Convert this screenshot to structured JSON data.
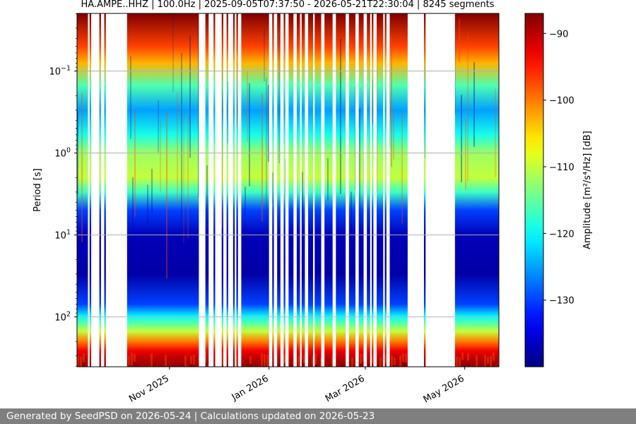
{
  "chart_data": {
    "type": "heatmap",
    "title": "HA.AMPE..HHZ | 100.0Hz | 2025-09-05T07:37:50 - 2026-05-21T22:30:04 | 8245 segments",
    "ylabel": "Period [s]",
    "xlabel": "",
    "y_scale": "log",
    "y_range_s": [
      0.0198,
      407
    ],
    "x_range": [
      "2025-09-05",
      "2026-05-21"
    ],
    "x_ticks": [
      {
        "date": "2025-11-01",
        "label": "Nov 2025"
      },
      {
        "date": "2026-01-01",
        "label": "Jan 2026"
      },
      {
        "date": "2026-03-01",
        "label": "Mar 2026"
      },
      {
        "date": "2026-05-01",
        "label": "May 2026"
      }
    ],
    "y_ticks": [
      {
        "value": 0.1,
        "base": "10",
        "exp": "−1"
      },
      {
        "value": 1,
        "base": "10",
        "exp": "0"
      },
      {
        "value": 10,
        "base": "10",
        "exp": "1"
      },
      {
        "value": 100,
        "base": "10",
        "exp": "2"
      }
    ],
    "colorbar": {
      "label": "Amplitude [m²/s⁴/Hz] [dB]",
      "colormap": "jet",
      "range_db": [
        -140,
        -87
      ],
      "ticks": [
        -90,
        -100,
        -110,
        -120,
        -130
      ]
    },
    "data_gaps": [
      [
        "2025-09-12",
        "2025-09-13"
      ],
      [
        "2025-09-14",
        "2025-09-19"
      ],
      [
        "2025-09-20",
        "2025-09-22"
      ],
      [
        "2025-09-23",
        "2025-10-06"
      ],
      [
        "2025-11-19",
        "2025-11-23"
      ],
      [
        "2025-11-25",
        "2025-11-28"
      ],
      [
        "2025-11-29",
        "2025-12-03"
      ],
      [
        "2025-12-04",
        "2025-12-06"
      ],
      [
        "2025-12-07",
        "2025-12-10"
      ],
      [
        "2025-12-11",
        "2025-12-12"
      ],
      [
        "2025-12-13",
        "2025-12-15"
      ],
      [
        "2026-01-01",
        "2026-01-03"
      ],
      [
        "2026-01-04",
        "2026-01-06"
      ],
      [
        "2026-01-08",
        "2026-01-10"
      ],
      [
        "2026-01-11",
        "2026-01-13"
      ],
      [
        "2026-01-16",
        "2026-01-18"
      ],
      [
        "2026-01-20",
        "2026-01-21"
      ],
      [
        "2026-01-23",
        "2026-01-25"
      ],
      [
        "2026-01-28",
        "2026-01-29"
      ],
      [
        "2026-02-02",
        "2026-02-04"
      ],
      [
        "2026-02-09",
        "2026-02-11"
      ],
      [
        "2026-02-17",
        "2026-02-19"
      ],
      [
        "2026-02-23",
        "2026-02-25"
      ],
      [
        "2026-02-28",
        "2026-03-02"
      ],
      [
        "2026-03-04",
        "2026-03-05"
      ],
      [
        "2026-03-06",
        "2026-03-08"
      ],
      [
        "2026-03-12",
        "2026-03-13"
      ],
      [
        "2026-03-14",
        "2026-03-16"
      ],
      [
        "2026-03-27",
        "2026-04-06"
      ],
      [
        "2026-04-07",
        "2026-04-25"
      ]
    ],
    "spectrum_profile": [
      {
        "period_s": 0.02,
        "db": -87
      },
      {
        "period_s": 0.05,
        "db": -97
      },
      {
        "period_s": 0.08,
        "db": -103
      },
      {
        "period_s": 0.15,
        "db": -116
      },
      {
        "period_s": 0.3,
        "db": -125
      },
      {
        "period_s": 0.6,
        "db": -119
      },
      {
        "period_s": 1.0,
        "db": -112
      },
      {
        "period_s": 2.0,
        "db": -110
      },
      {
        "period_s": 3.0,
        "db": -117
      },
      {
        "period_s": 5.0,
        "db": -130
      },
      {
        "period_s": 10.0,
        "db": -137
      },
      {
        "period_s": 30.0,
        "db": -138
      },
      {
        "period_s": 70.0,
        "db": -130
      },
      {
        "period_s": 100.0,
        "db": -120
      },
      {
        "period_s": 150.0,
        "db": -110
      },
      {
        "period_s": 200.0,
        "db": -100
      },
      {
        "period_s": 260.0,
        "db": -93
      },
      {
        "period_s": 407.0,
        "db": -87
      }
    ]
  },
  "footer": {
    "text": "Generated by SeedPSD on 2026-05-24 | Calculations updated on 2026-05-23"
  }
}
